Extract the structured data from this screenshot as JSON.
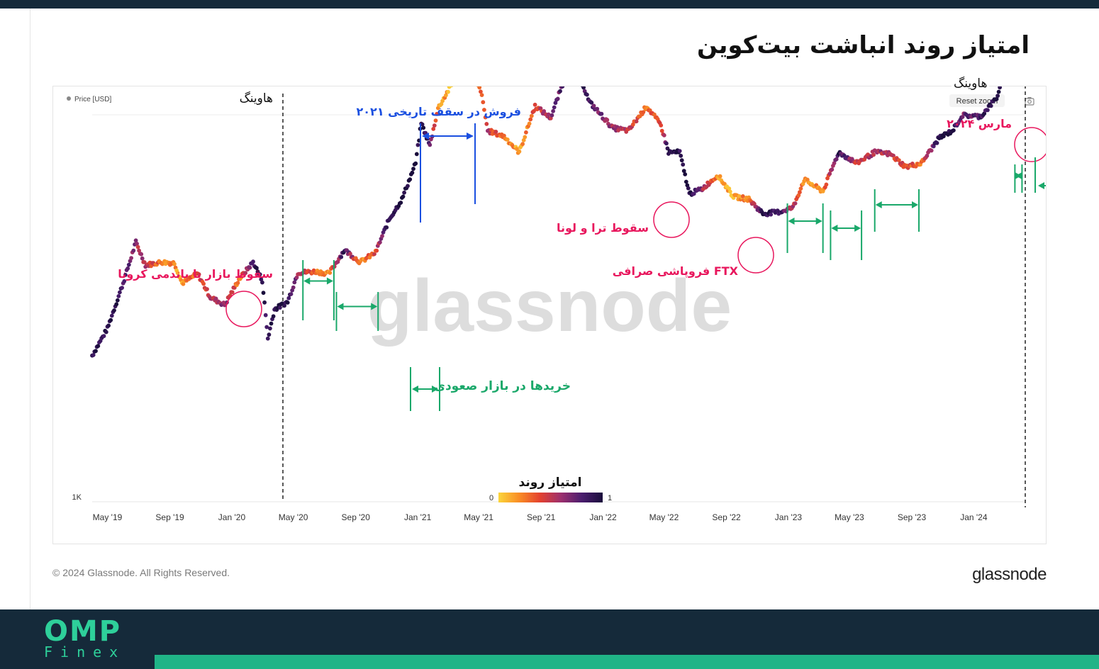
{
  "page": {
    "title": "امتیاز روند انباشت بیت‌کوین",
    "copyright": "© 2024 Glassnode. All Rights Reserved.",
    "brand": "glassnode",
    "logo_top": "OMP",
    "logo_bottom": "Finex",
    "colors": {
      "dark": "#152a3a",
      "accent": "#20b487",
      "annotation_red": "#e8175d",
      "annotation_blue": "#1a4fe0",
      "annotation_green": "#1aa86a"
    }
  },
  "chart_data": {
    "type": "scatter",
    "legend": "Price [USD]",
    "reset_zoom": "Reset zoom",
    "y_tick": "1K",
    "watermark": "glassnode",
    "colorbar": {
      "title": "امتیاز روند",
      "min_label": "0",
      "max_label": "1",
      "colors": [
        "#fbd53b",
        "#f98c25",
        "#e3412f",
        "#9c2f6e",
        "#4a1d6e",
        "#1a0d3c"
      ]
    },
    "x_ticks": [
      "May '19",
      "Sep '19",
      "Jan '20",
      "May '20",
      "Sep '20",
      "Jan '21",
      "May '21",
      "Sep '21",
      "Jan '22",
      "May '22",
      "Sep '22",
      "Jan '23",
      "May '23",
      "Sep '23",
      "Jan '24"
    ],
    "x_range": [
      "2019-04-01",
      "2024-04-10"
    ],
    "y_scale": "log",
    "series": [
      {
        "values": [
          [
            "2019-04-01",
            4150,
            0.9
          ],
          [
            "2019-05-01",
            5400,
            0.95
          ],
          [
            "2019-06-01",
            8400,
            0.85
          ],
          [
            "2019-06-26",
            12500,
            0.6
          ],
          [
            "2019-07-15",
            10000,
            0.5
          ],
          [
            "2019-08-15",
            10300,
            0.3
          ],
          [
            "2019-09-10",
            10200,
            0.2
          ],
          [
            "2019-09-25",
            8400,
            0.1
          ],
          [
            "2019-10-26",
            9200,
            0.4
          ],
          [
            "2019-11-20",
            7300,
            0.5
          ],
          [
            "2019-12-18",
            6800,
            0.7
          ],
          [
            "2020-01-15",
            8700,
            0.2
          ],
          [
            "2020-02-12",
            10300,
            0.85
          ],
          [
            "2020-03-01",
            8600,
            0.95
          ],
          [
            "2020-03-12",
            4900,
            0.9
          ],
          [
            "2020-03-25",
            6500,
            1.0
          ],
          [
            "2020-04-20",
            7000,
            0.95
          ],
          [
            "2020-05-10",
            9300,
            0.6
          ],
          [
            "2020-06-15",
            9400,
            0.3
          ],
          [
            "2020-07-10",
            9200,
            0.2
          ],
          [
            "2020-08-10",
            11600,
            0.9
          ],
          [
            "2020-09-10",
            10300,
            0.2
          ],
          [
            "2020-10-10",
            11300,
            0.4
          ],
          [
            "2020-11-05",
            15500,
            0.95
          ],
          [
            "2020-12-01",
            19000,
            1.0
          ],
          [
            "2020-12-28",
            27000,
            1.0
          ],
          [
            "2021-01-08",
            40000,
            1.0
          ],
          [
            "2021-01-25",
            32000,
            0.8
          ],
          [
            "2021-02-10",
            46000,
            0.2
          ],
          [
            "2021-03-13",
            60000,
            0.1
          ],
          [
            "2021-04-14",
            63500,
            0.1
          ],
          [
            "2021-05-05",
            55000,
            0.3
          ],
          [
            "2021-05-19",
            37000,
            0.5
          ],
          [
            "2021-06-20",
            35000,
            0.3
          ],
          [
            "2021-07-20",
            30000,
            0.1
          ],
          [
            "2021-08-20",
            47000,
            0.4
          ],
          [
            "2021-09-20",
            42000,
            0.6
          ],
          [
            "2021-10-20",
            64000,
            0.9
          ],
          [
            "2021-11-10",
            68000,
            1.0
          ],
          [
            "2021-12-05",
            49000,
            0.8
          ],
          [
            "2022-01-20",
            38000,
            0.6
          ],
          [
            "2022-02-20",
            37000,
            0.5
          ],
          [
            "2022-03-28",
            47000,
            0.3
          ],
          [
            "2022-04-25",
            39000,
            0.4
          ],
          [
            "2022-05-10",
            30000,
            1.0
          ],
          [
            "2022-06-01",
            30000,
            0.95
          ],
          [
            "2022-06-20",
            20000,
            1.0
          ],
          [
            "2022-07-15",
            21000,
            0.6
          ],
          [
            "2022-08-15",
            24000,
            0.2
          ],
          [
            "2022-09-15",
            19500,
            0.1
          ],
          [
            "2022-10-15",
            19000,
            0.3
          ],
          [
            "2022-11-12",
            16500,
            0.95
          ],
          [
            "2022-12-15",
            16800,
            0.9
          ],
          [
            "2023-01-10",
            17500,
            0.5
          ],
          [
            "2023-02-01",
            23000,
            0.2
          ],
          [
            "2023-03-10",
            20500,
            0.2
          ],
          [
            "2023-04-10",
            30000,
            0.9
          ],
          [
            "2023-05-15",
            27000,
            0.5
          ],
          [
            "2023-06-20",
            30000,
            0.6
          ],
          [
            "2023-07-20",
            29500,
            0.5
          ],
          [
            "2023-08-20",
            26000,
            0.4
          ],
          [
            "2023-09-20",
            27000,
            0.3
          ],
          [
            "2023-10-25",
            34500,
            1.0
          ],
          [
            "2023-11-20",
            37000,
            0.9
          ],
          [
            "2023-12-10",
            43000,
            0.7
          ],
          [
            "2024-01-15",
            42500,
            0.85
          ],
          [
            "2024-02-15",
            51000,
            0.95
          ],
          [
            "2024-03-05",
            66000,
            1.0
          ],
          [
            "2024-03-14",
            72000,
            0.9
          ],
          [
            "2024-03-25",
            68000,
            0.5
          ],
          [
            "2024-04-08",
            69500,
            0.2
          ]
        ]
      }
    ],
    "halving_lines": [
      {
        "date": "2020-05-11",
        "label": "هاوینگ"
      },
      {
        "date": "2024-04-20",
        "label": "هاوینگ"
      }
    ],
    "annotations": [
      {
        "text": "سقوط بازار با پاندمی کرونا",
        "kind": "red"
      },
      {
        "text": "فروش در سقف تاریخی ۲۰۲۱",
        "kind": "blue"
      },
      {
        "text": "سقوط ترا و لونا",
        "kind": "red"
      },
      {
        "text": "فروپاشی صرافی FTX",
        "kind": "red"
      },
      {
        "text": "مارس ۲۰۲۴",
        "kind": "red"
      },
      {
        "text": "خریدها در بازار صعودی",
        "kind": "green"
      }
    ]
  }
}
